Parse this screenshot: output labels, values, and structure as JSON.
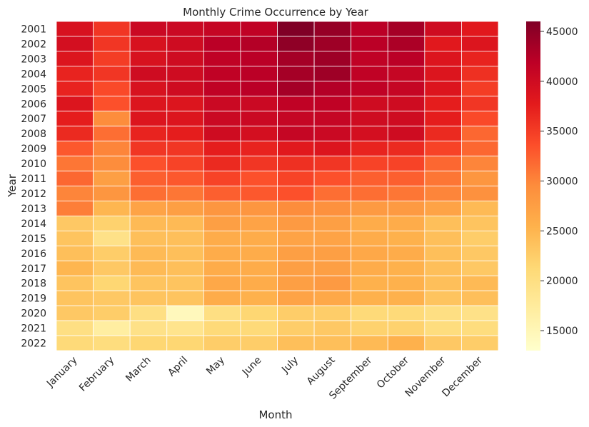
{
  "chart_data": {
    "type": "heatmap",
    "title": "Monthly Crime Occurrence by Year",
    "xlabel": "Month",
    "ylabel": "Year",
    "x_categories": [
      "January",
      "February",
      "March",
      "April",
      "May",
      "June",
      "July",
      "August",
      "September",
      "October",
      "November",
      "December"
    ],
    "y_categories": [
      "2001",
      "2002",
      "2003",
      "2004",
      "2005",
      "2006",
      "2007",
      "2008",
      "2009",
      "2010",
      "2011",
      "2012",
      "2013",
      "2014",
      "2015",
      "2016",
      "2017",
      "2018",
      "2019",
      "2020",
      "2021",
      "2022"
    ],
    "values": [
      [
        39000,
        35500,
        40500,
        40500,
        41000,
        41500,
        46000,
        44500,
        42000,
        43500,
        40000,
        38000
      ],
      [
        39500,
        35500,
        39000,
        40000,
        42000,
        42500,
        45000,
        44000,
        42000,
        43000,
        38000,
        38500
      ],
      [
        38500,
        35000,
        39000,
        40000,
        41500,
        42000,
        43500,
        44000,
        41500,
        42000,
        38500,
        37000
      ],
      [
        37000,
        35500,
        40000,
        40000,
        41500,
        42000,
        43500,
        44000,
        41500,
        41000,
        38500,
        36000
      ],
      [
        37000,
        34000,
        39000,
        40000,
        41500,
        42000,
        43500,
        42500,
        41500,
        41000,
        38500,
        35000
      ],
      [
        38500,
        33500,
        38500,
        38500,
        40500,
        40500,
        41500,
        41500,
        40000,
        40000,
        37500,
        35500
      ],
      [
        37500,
        29500,
        38500,
        38500,
        40500,
        40500,
        41000,
        41000,
        40000,
        40000,
        37500,
        34000
      ],
      [
        36500,
        31500,
        37000,
        37500,
        40000,
        39500,
        41000,
        40500,
        39500,
        40000,
        36500,
        32000
      ],
      [
        33000,
        30000,
        35500,
        35500,
        37500,
        37000,
        38000,
        38500,
        37000,
        36500,
        34500,
        32000
      ],
      [
        31000,
        29500,
        33500,
        34500,
        36500,
        35500,
        36000,
        35500,
        34500,
        34500,
        32000,
        30000
      ],
      [
        32000,
        27500,
        32500,
        33000,
        34500,
        33500,
        34500,
        33500,
        32500,
        32500,
        31000,
        28500
      ],
      [
        30000,
        28500,
        31500,
        31000,
        32500,
        33000,
        33500,
        31500,
        31500,
        31000,
        30000,
        29000
      ],
      [
        30500,
        25000,
        27000,
        27500,
        28500,
        28500,
        29500,
        29000,
        28000,
        28000,
        27000,
        24500
      ],
      [
        23000,
        22000,
        24500,
        24500,
        27500,
        27000,
        28000,
        27500,
        26000,
        26000,
        24000,
        23500
      ],
      [
        23500,
        19500,
        24000,
        24000,
        26000,
        26000,
        27000,
        27000,
        26000,
        25500,
        24000,
        22500
      ],
      [
        24000,
        22500,
        24500,
        24000,
        26000,
        26000,
        27500,
        27500,
        26500,
        26000,
        24000,
        23000
      ],
      [
        25000,
        23000,
        24500,
        24000,
        26000,
        26000,
        27500,
        27500,
        26000,
        25500,
        24000,
        23000
      ],
      [
        23500,
        21500,
        23500,
        23500,
        26500,
        26000,
        27500,
        28000,
        25500,
        25500,
        24000,
        24500
      ],
      [
        23500,
        23000,
        23500,
        23500,
        26000,
        25500,
        27000,
        26500,
        25500,
        25500,
        23500,
        24000
      ],
      [
        23000,
        22500,
        20000,
        14500,
        20000,
        21500,
        22500,
        22500,
        21000,
        21000,
        20000,
        19500
      ],
      [
        20000,
        17000,
        19500,
        19000,
        21000,
        21000,
        22500,
        23000,
        22000,
        22000,
        20500,
        20500
      ],
      [
        21000,
        20500,
        21500,
        21500,
        22500,
        22500,
        24000,
        24000,
        24500,
        25500,
        23000,
        22500
      ]
    ],
    "colorbar": {
      "min": 13000,
      "max": 46000,
      "ticks": [
        15000,
        20000,
        25000,
        30000,
        35000,
        40000,
        45000
      ]
    },
    "colormap": "YlOrRd",
    "colors": [
      "#ffffcc",
      "#ffeda0",
      "#fed976",
      "#feb24c",
      "#fd8d3c",
      "#fc4e2a",
      "#e31a1c",
      "#bd0026",
      "#800026"
    ],
    "grid_lines": "white"
  }
}
